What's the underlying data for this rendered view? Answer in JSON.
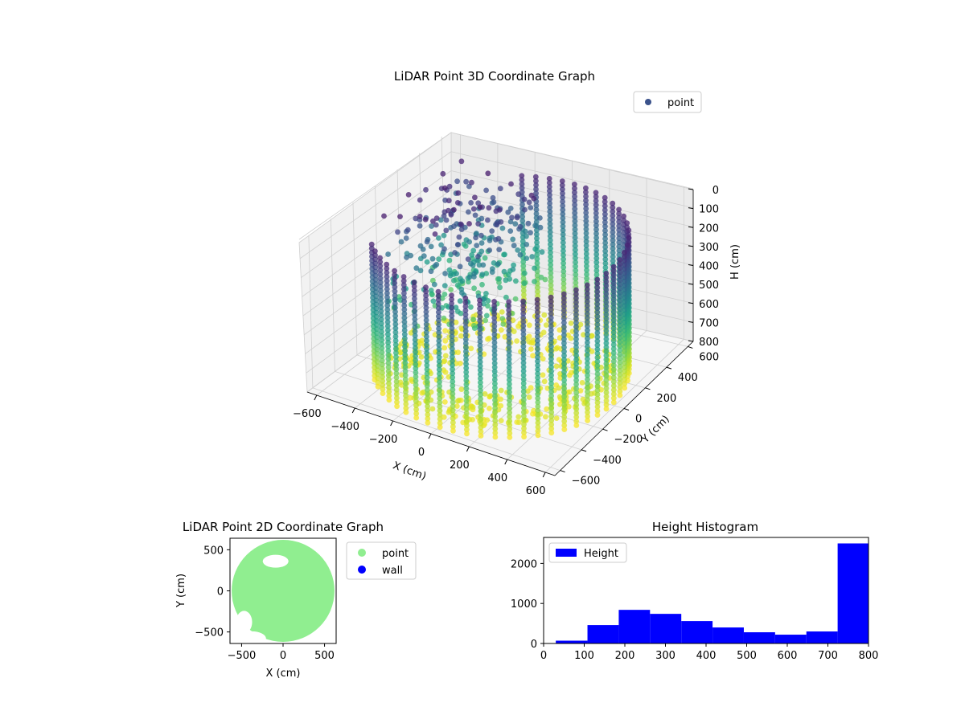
{
  "chart_data": [
    {
      "type": "scatter3d",
      "title": "LiDAR Point 3D Coordinate Graph",
      "xlabel": "X (cm)",
      "ylabel": "Y (cm)",
      "zlabel": "H (cm)",
      "xlim": [
        -650,
        650
      ],
      "ylim": [
        -650,
        650
      ],
      "zlim": [
        0,
        800
      ],
      "z_axis_inverted": true,
      "xticks": [
        -600,
        -400,
        -200,
        0,
        200,
        400,
        600
      ],
      "yticks": [
        -600,
        -400,
        -200,
        0,
        200,
        400,
        600
      ],
      "zticks": [
        0,
        100,
        200,
        300,
        400,
        500,
        600,
        700,
        800
      ],
      "colormap": "viridis",
      "grid": true,
      "legend": {
        "position": "upper-right",
        "entries": [
          {
            "name": "point",
            "color": "#3b528b"
          }
        ]
      },
      "point_layers": [
        {
          "shape": "cylinder",
          "radius": 590,
          "angle_range_deg": [
            220,
            470
          ],
          "h_range": [
            80,
            790
          ],
          "num_columns": 40,
          "points_per_column": 34
        },
        {
          "shape": "floor-disk",
          "radius_range": [
            150,
            520
          ],
          "h": 790,
          "count": 380
        },
        {
          "shape": "interior-clutter",
          "region": "back-left",
          "h_range": [
            60,
            600
          ],
          "count": 320
        }
      ]
    },
    {
      "type": "scatter",
      "title": "LiDAR Point 2D Coordinate Graph",
      "xlabel": "X (cm)",
      "ylabel": "Y (cm)",
      "xlim": [
        -640,
        640
      ],
      "ylim": [
        -640,
        640
      ],
      "xticks": [
        -500,
        0,
        500
      ],
      "yticks": [
        -500,
        0,
        500
      ],
      "legend": {
        "position": "outside-right",
        "entries": [
          {
            "name": "point",
            "color": "#90ee90"
          },
          {
            "name": "wall",
            "color": "#0000ff"
          }
        ]
      },
      "series": [
        {
          "name": "point",
          "color": "#90ee90",
          "shape": "filled-disk",
          "radius": 620
        },
        {
          "name": "wall",
          "color": "#0000ff",
          "values": []
        }
      ]
    },
    {
      "type": "histogram",
      "title": "Height Histogram",
      "xlabel": "",
      "ylabel": "",
      "xlim": [
        0,
        800
      ],
      "ylim": [
        0,
        2650
      ],
      "xticks": [
        0,
        100,
        200,
        300,
        400,
        500,
        600,
        700,
        800
      ],
      "yticks": [
        0,
        1000,
        2000
      ],
      "color": "#0000ff",
      "legend": {
        "position": "upper-left",
        "entries": [
          {
            "name": "Height",
            "color": "#0000ff"
          }
        ]
      },
      "bin_edges": [
        30,
        108,
        185,
        262,
        339,
        416,
        493,
        570,
        647,
        724,
        800
      ],
      "counts": [
        70,
        460,
        840,
        740,
        560,
        400,
        280,
        220,
        300,
        2500
      ]
    }
  ]
}
